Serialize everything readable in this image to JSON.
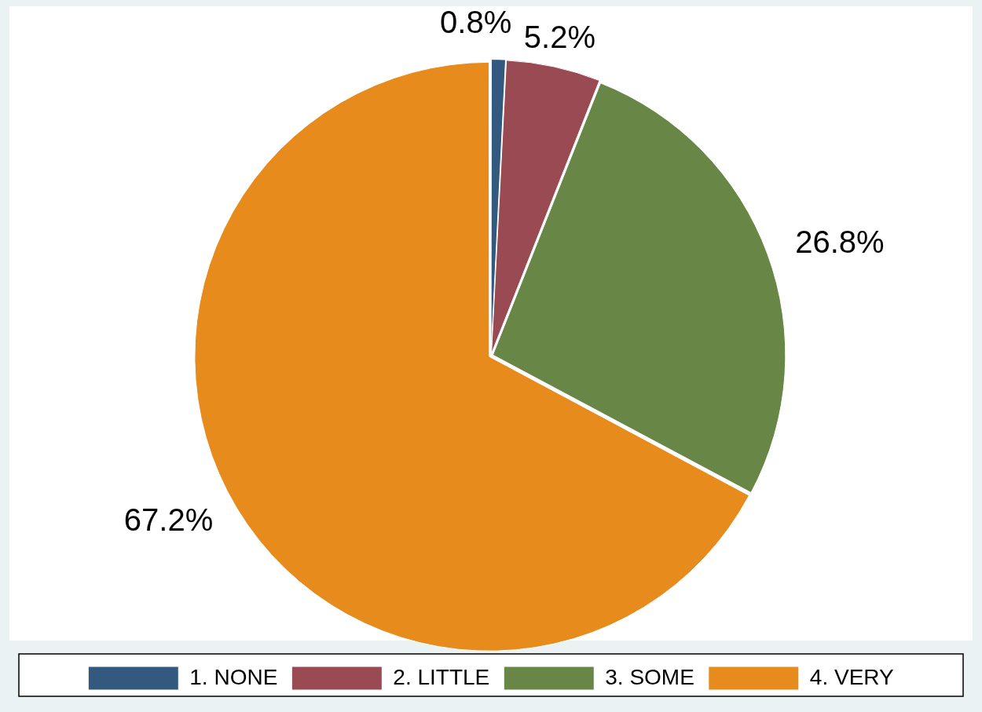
{
  "chart_data": {
    "type": "pie",
    "categories": [
      "1. NONE",
      "2. LITTLE",
      "3. SOME",
      "4. VERY"
    ],
    "values": [
      0.8,
      5.2,
      26.8,
      67.2
    ],
    "colors": [
      "#335a7e",
      "#9a4a52",
      "#688645",
      "#e68b1c"
    ],
    "value_labels": [
      "0.8%",
      "5.2%",
      "26.8%",
      "67.2%"
    ],
    "legend": "bottom"
  }
}
